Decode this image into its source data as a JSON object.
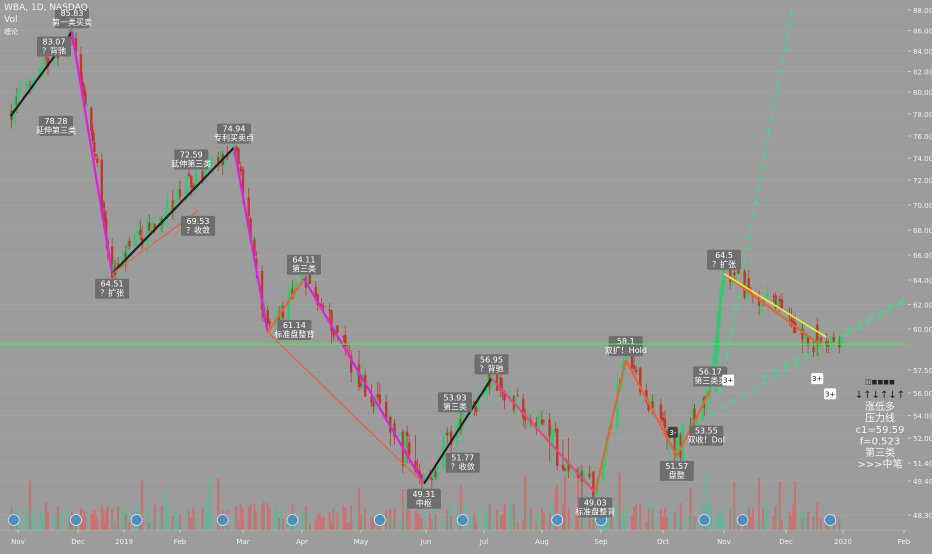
{
  "header": {
    "symbol": "WBA, 1D, NASDAQ",
    "volume_label": "Vol",
    "indicator_label": "缠论"
  },
  "colors": {
    "background": "#9c9c9c",
    "up_candle": "#2ecc71",
    "down_candle": "#c0392b",
    "bi_black": "#222222",
    "bi_magenta": "#e020e0",
    "bi_red": "#e8623a",
    "trend_yellow": "#f0e040",
    "price_line": "#33ff33",
    "projection": "#3fd97f",
    "vol_up": "#5fb89a",
    "vol_down": "#d46a6a"
  },
  "chart_data": {
    "type": "candlestick",
    "title": "WBA, 1D, NASDAQ",
    "x_tick_labels": [
      "Nov",
      "Dec",
      "2019",
      "Feb",
      "Mar",
      "Apr",
      "May",
      "Jun",
      "Jul",
      "Aug",
      "Sep",
      "Oct",
      "Nov",
      "Dec",
      "2020",
      "Feb"
    ],
    "y_tick_labels": [
      "88.00",
      "86.00",
      "84.00",
      "82.00",
      "80.00",
      "78.00",
      "76.00",
      "74.00",
      "72.00",
      "70.00",
      "68.00",
      "66.00",
      "64.00",
      "62.00",
      "60.00",
      "57.50",
      "56.00",
      "54.00",
      "52.00",
      "51.40",
      "49.40",
      "48.30"
    ],
    "ylim": [
      47.5,
      88.8
    ],
    "current_price": "59.08",
    "bi_pivots": [
      {
        "date": "2018-10-25",
        "price": 77.8
      },
      {
        "date": "2018-11-28",
        "price": 85.83
      },
      {
        "date": "2018-12-24",
        "price": 64.51
      },
      {
        "date": "2019-02-25",
        "price": 74.94
      },
      {
        "date": "2019-03-14",
        "price": 59.8
      },
      {
        "date": "2019-04-02",
        "price": 64.11
      },
      {
        "date": "2019-05-31",
        "price": 49.31
      },
      {
        "date": "2019-07-05",
        "price": 56.95
      },
      {
        "date": "2019-08-29",
        "price": 49.03
      },
      {
        "date": "2019-09-13",
        "price": 58.1
      },
      {
        "date": "2019-10-08",
        "price": 51.57
      },
      {
        "date": "2019-10-25",
        "price": 56.17
      },
      {
        "date": "2019-11-01",
        "price": 64.5
      },
      {
        "date": "2019-12-20",
        "price": 59.0
      }
    ],
    "annotations": [
      {
        "date": "2018-11-28",
        "price": 85.83,
        "lines": [
          "85.83",
          "第一类买卖"
        ],
        "pos": "above"
      },
      {
        "date": "2018-11-19",
        "price": 83.07,
        "lines": [
          "83.07",
          "？背驰"
        ],
        "pos": "above"
      },
      {
        "date": "2018-11-20",
        "price": 78.28,
        "lines": [
          "78.28",
          "延伸第三类"
        ],
        "pos": "below"
      },
      {
        "date": "2018-12-24",
        "price": 64.51,
        "lines": [
          "64.51",
          "？扩张"
        ],
        "pos": "below"
      },
      {
        "date": "2019-02-06",
        "price": 72.59,
        "lines": [
          "72.59",
          "延伸第三类"
        ],
        "pos": "above"
      },
      {
        "date": "2019-02-09",
        "price": 69.53,
        "lines": [
          "69.53",
          "？收敛"
        ],
        "pos": "below"
      },
      {
        "date": "2019-02-25",
        "price": 74.94,
        "lines": [
          "74.94",
          "专利买卖点"
        ],
        "pos": "above"
      },
      {
        "date": "2019-04-02",
        "price": 64.11,
        "lines": [
          "64.11",
          "第三类"
        ],
        "pos": "above"
      },
      {
        "date": "2019-03-28",
        "price": 61.14,
        "lines": [
          "61.14",
          "标准盘整背"
        ],
        "pos": "below"
      },
      {
        "date": "2019-05-31",
        "price": 49.31,
        "lines": [
          "49.31",
          "中枢"
        ],
        "pos": "below"
      },
      {
        "date": "2019-06-16",
        "price": 53.93,
        "lines": [
          "53.93",
          "第三类"
        ],
        "pos": "above"
      },
      {
        "date": "2019-06-20",
        "price": 51.77,
        "lines": [
          "51.77",
          "？收敛"
        ],
        "pos": "below"
      },
      {
        "date": "2019-07-05",
        "price": 56.95,
        "lines": [
          "56.95",
          "？背驰"
        ],
        "pos": "above"
      },
      {
        "date": "2019-08-29",
        "price": 49.03,
        "lines": [
          "49.03",
          "标准盘整背"
        ],
        "pos": "below"
      },
      {
        "date": "2019-09-13",
        "price": 58.1,
        "lines": [
          "58.1",
          "双扩！Hold"
        ],
        "pos": "above"
      },
      {
        "date": "2019-10-08",
        "price": 51.57,
        "lines": [
          "51.57",
          "盘整"
        ],
        "pos": "below"
      },
      {
        "date": "2019-10-25",
        "price": 56.17,
        "lines": [
          "56.17",
          "第三类买"
        ],
        "pos": "above"
      },
      {
        "date": "2019-10-23",
        "price": 53.55,
        "lines": [
          "53.55",
          "双收！Dol"
        ],
        "pos": "below"
      },
      {
        "date": "2019-11-01",
        "price": 64.5,
        "lines": [
          "64.5",
          "？扩张"
        ],
        "pos": "above"
      }
    ],
    "markers": [
      {
        "date": "2019-11-03",
        "price": 57.2,
        "label": "3+"
      },
      {
        "date": "2019-12-18",
        "price": 57.3,
        "label": "3+"
      },
      {
        "date": "2019-12-25",
        "price": 56.3,
        "label": "3+"
      }
    ],
    "small_markers": [
      {
        "date": "2019-10-06",
        "price": 53.0,
        "label": "3-"
      }
    ],
    "info_panel": {
      "icons": "◫◼◼◼◼",
      "arrows": "↓↑↓↑↓↑",
      "lines": [
        "涨低多",
        "压力线",
        "c1=59.59",
        "f=0.523",
        "第三类",
        ">>>中笔"
      ]
    },
    "projections": [
      {
        "from": {
          "date": "2019-10-30",
          "price": 56.0
        },
        "to": {
          "date": "2019-12-05",
          "price": 88.8
        }
      },
      {
        "from": {
          "date": "2019-10-15",
          "price": 53.0
        },
        "to": {
          "date": "2020-02-25",
          "price": 64.5
        }
      },
      {
        "from": {
          "date": "2019-11-20",
          "price": 57.0
        },
        "to": {
          "date": "2020-02-25",
          "price": 64.5
        }
      }
    ],
    "trendline": {
      "from": {
        "date": "2019-11-01",
        "price": 64.5
      },
      "to": {
        "date": "2019-12-23",
        "price": 59.5
      }
    }
  }
}
